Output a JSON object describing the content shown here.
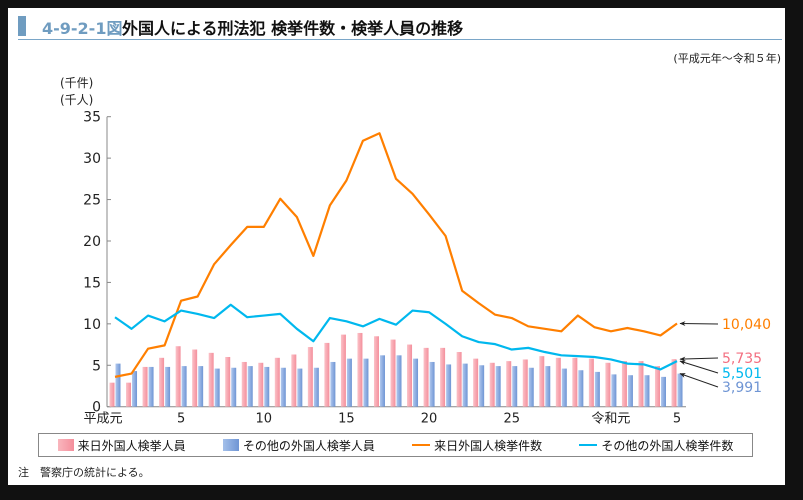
{
  "header": {
    "figure_number": "4-9-2-1図",
    "title": "外国人による刑法犯 検挙件数・検挙人員の推移"
  },
  "period": "(平成元年～令和５年)",
  "units": {
    "cases": "(千件)",
    "persons": "(千人)"
  },
  "note": "注　警察庁の統計による。",
  "colors": {
    "pink": "#f7a1ab",
    "blue": "#7ea3db",
    "orange": "#ff7f00",
    "cyan": "#00b8ee"
  },
  "chart_data": {
    "type": "bar+line",
    "title": "外国人による刑法犯 検挙件数・検挙人員の推移",
    "ylabel": "(千件)(千人)",
    "ylim": [
      0,
      35
    ],
    "yticks": [
      0,
      5,
      10,
      15,
      20,
      25,
      30,
      35
    ],
    "x": [
      "平成元",
      "2",
      "3",
      "4",
      "5",
      "6",
      "7",
      "8",
      "9",
      "10",
      "11",
      "12",
      "13",
      "14",
      "15",
      "16",
      "17",
      "18",
      "19",
      "20",
      "21",
      "22",
      "23",
      "24",
      "25",
      "26",
      "27",
      "28",
      "29",
      "30",
      "令和元",
      "2",
      "3",
      "4",
      "5"
    ],
    "xtick_labels": [
      {
        "index": 0,
        "label": "平成元"
      },
      {
        "index": 4,
        "label": "5"
      },
      {
        "index": 9,
        "label": "10"
      },
      {
        "index": 14,
        "label": "15"
      },
      {
        "index": 19,
        "label": "20"
      },
      {
        "index": 24,
        "label": "25"
      },
      {
        "index": 30,
        "label": "令和元"
      },
      {
        "index": 34,
        "label": "5"
      }
    ],
    "series": [
      {
        "name": "来日外国人検挙人員",
        "kind": "bar",
        "color": "#f7a1ab",
        "values": [
          2.9,
          2.9,
          4.8,
          5.9,
          7.3,
          6.9,
          6.5,
          6.0,
          5.4,
          5.3,
          5.9,
          6.3,
          7.2,
          7.7,
          8.7,
          8.9,
          8.5,
          8.1,
          7.5,
          7.1,
          7.1,
          6.6,
          5.8,
          5.3,
          5.5,
          5.7,
          6.1,
          5.9,
          5.9,
          5.8,
          5.3,
          5.5,
          5.5,
          4.9,
          5.735
        ]
      },
      {
        "name": "その他の外国人検挙人員",
        "kind": "bar",
        "color": "#7ea3db",
        "values": [
          5.2,
          4.3,
          4.8,
          4.8,
          4.9,
          4.9,
          4.6,
          4.7,
          4.9,
          4.8,
          4.7,
          4.6,
          4.7,
          5.4,
          5.8,
          5.8,
          6.2,
          6.2,
          5.8,
          5.4,
          5.1,
          5.2,
          5.0,
          4.9,
          4.9,
          4.7,
          4.9,
          4.6,
          4.4,
          4.2,
          3.9,
          3.8,
          3.8,
          3.6,
          3.991
        ]
      },
      {
        "name": "来日外国人検挙件数",
        "kind": "line",
        "color": "#ff7f00",
        "values": [
          3.6,
          4.0,
          7.0,
          7.4,
          12.8,
          13.3,
          17.2,
          19.5,
          21.7,
          21.7,
          25.1,
          22.9,
          18.2,
          24.3,
          27.3,
          32.1,
          33.0,
          27.5,
          25.7,
          23.2,
          20.6,
          14.0,
          12.5,
          11.1,
          10.7,
          9.7,
          9.4,
          9.1,
          11.0,
          9.6,
          9.1,
          9.5,
          9.1,
          8.6,
          10.04
        ]
      },
      {
        "name": "その他の外国人検挙件数",
        "kind": "line",
        "color": "#00b8ee",
        "values": [
          10.8,
          9.4,
          11.0,
          10.3,
          11.6,
          11.2,
          10.7,
          12.3,
          10.8,
          11.0,
          11.2,
          9.4,
          7.9,
          10.7,
          10.3,
          9.7,
          10.6,
          9.9,
          11.6,
          11.4,
          10.0,
          8.5,
          7.8,
          7.55,
          6.9,
          7.1,
          6.6,
          6.2,
          6.1,
          6.0,
          5.7,
          5.2,
          5.1,
          4.5,
          5.501
        ]
      }
    ],
    "annotations": [
      {
        "series": "来日外国人検挙件数",
        "label": "10,040",
        "color": "#ff7f00",
        "value": 10.04
      },
      {
        "series": "来日外国人検挙人員",
        "label": "5,735",
        "color": "#f36f80",
        "value": 5.735
      },
      {
        "series": "その他の外国人検挙件数",
        "label": "5,501",
        "color": "#00b8ee",
        "value": 5.501
      },
      {
        "series": "その他の外国人検挙人員",
        "label": "3,991",
        "color": "#6f95d4",
        "value": 3.991
      }
    ],
    "legend": {
      "placement": "bottom",
      "items": [
        "来日外国人検挙人員",
        "その他の外国人検挙人員",
        "来日外国人検挙件数",
        "その他の外国人検挙件数"
      ]
    },
    "grid": false
  }
}
